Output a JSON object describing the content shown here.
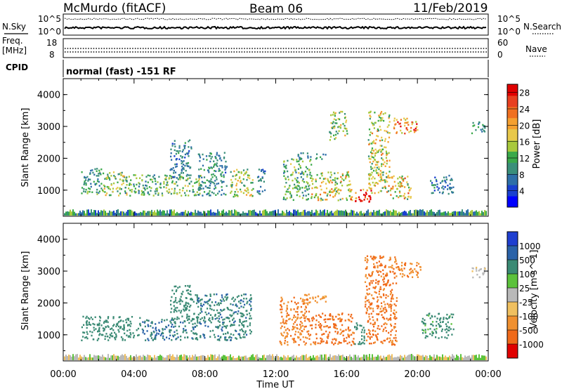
{
  "header": {
    "station": "McMurdo (fitACF)",
    "beam": "Beam 06",
    "date": "11/Feb/2019"
  },
  "summary_panels": {
    "nsky_label": "N.Sky",
    "nsearch_label": "N.Search",
    "freq_label_top": "Freq.",
    "freq_label_unit": "[MHz]",
    "nave_label": "Nave",
    "cpid_label": "CPID",
    "cpid_text": "normal (fast) -151 RF",
    "noise_left_ticks": [
      "10^5",
      "10^0"
    ],
    "noise_right_ticks": [
      "10^5",
      "10^0"
    ],
    "freq_left_ticks": [
      "18",
      "8"
    ],
    "nave_right_ticks": [
      "60",
      "0"
    ]
  },
  "chart_data": [
    {
      "type": "heatmap",
      "name": "power",
      "xlabel": "Time UT",
      "ylabel": "Slant Range [km]",
      "x_ticks": [
        "00:00",
        "04:00",
        "08:00",
        "12:00",
        "16:00",
        "20:00",
        "00:00"
      ],
      "x_range_hours": [
        0,
        24
      ],
      "ylim": [
        180,
        4500
      ],
      "y_ticks": [
        1000,
        2000,
        3000,
        4000
      ],
      "colorbar": {
        "label": "Power [dB]",
        "ticks": [
          4,
          8,
          12,
          16,
          20,
          24,
          28
        ],
        "range": [
          0,
          30
        ],
        "colors": [
          "#0000ff",
          "#1a40d0",
          "#2e6fa8",
          "#3a8f7a",
          "#3aa94a",
          "#a8c93c",
          "#e8c84a",
          "#f5a030",
          "#f07020",
          "#e84020",
          "#e00000"
        ]
      },
      "echo_regions": [
        {
          "t": [
            1.0,
            2.2
          ],
          "r": [
            900,
            1700
          ],
          "p": 10
        },
        {
          "t": [
            2.2,
            3.6
          ],
          "r": [
            850,
            1600
          ],
          "p": 14
        },
        {
          "t": [
            3.4,
            5.6
          ],
          "r": [
            850,
            1500
          ],
          "p": 11
        },
        {
          "t": [
            5.6,
            7.8
          ],
          "r": [
            850,
            1500
          ],
          "p": 13
        },
        {
          "t": [
            6.0,
            7.2
          ],
          "r": [
            1400,
            2600
          ],
          "p": 8
        },
        {
          "t": [
            7.6,
            9.2
          ],
          "r": [
            850,
            2200
          ],
          "p": 9
        },
        {
          "t": [
            9.4,
            10.7
          ],
          "r": [
            800,
            1700
          ],
          "p": 15
        },
        {
          "t": [
            10.9,
            11.4
          ],
          "r": [
            900,
            1700
          ],
          "p": 8
        },
        {
          "t": [
            12.4,
            14.0
          ],
          "r": [
            700,
            2000
          ],
          "p": 12
        },
        {
          "t": [
            13.2,
            14.8
          ],
          "r": [
            2000,
            2200
          ],
          "p": 9
        },
        {
          "t": [
            14.0,
            16.2
          ],
          "r": [
            700,
            1600
          ],
          "p": 17
        },
        {
          "t": [
            15.0,
            16.0
          ],
          "r": [
            2600,
            3500
          ],
          "p": 14
        },
        {
          "t": [
            16.2,
            17.4
          ],
          "r": [
            650,
            1100
          ],
          "p": 28
        },
        {
          "t": [
            17.2,
            18.4
          ],
          "r": [
            900,
            3500
          ],
          "p": 16
        },
        {
          "t": [
            18.4,
            19.6
          ],
          "r": [
            700,
            1500
          ],
          "p": 18
        },
        {
          "t": [
            18.6,
            20.0
          ],
          "r": [
            2800,
            3300
          ],
          "p": 22
        },
        {
          "t": [
            20.6,
            22.0
          ],
          "r": [
            900,
            1500
          ],
          "p": 8
        },
        {
          "t": [
            23.0,
            23.8
          ],
          "r": [
            2800,
            3200
          ],
          "p": 9
        }
      ]
    },
    {
      "type": "heatmap",
      "name": "velocity",
      "xlabel": "Time UT",
      "ylabel": "Slant Range [km]",
      "x_ticks": [
        "00:00",
        "04:00",
        "08:00",
        "12:00",
        "16:00",
        "20:00",
        "00:00"
      ],
      "x_range_hours": [
        0,
        24
      ],
      "ylim": [
        180,
        4500
      ],
      "y_ticks": [
        1000,
        2000,
        3000,
        4000
      ],
      "colorbar": {
        "label": "Velocity [m s^-1]",
        "ticks": [
          "1000",
          "500",
          "100",
          "25",
          "-25",
          "-100",
          "-500",
          "-1000"
        ],
        "colors": [
          "#1f3fd0",
          "#2a62a8",
          "#3a8a74",
          "#5cc23c",
          "#b9b9b9",
          "#f0c060",
          "#f09030",
          "#f06a1a",
          "#e00000"
        ]
      },
      "echo_regions": [
        {
          "t": [
            1.0,
            4.4
          ],
          "r": [
            850,
            1600
          ],
          "v": 200
        },
        {
          "t": [
            4.4,
            7.0
          ],
          "r": [
            850,
            1500
          ],
          "v": 300
        },
        {
          "t": [
            6.0,
            7.2
          ],
          "r": [
            1400,
            2600
          ],
          "v": 200
        },
        {
          "t": [
            7.2,
            10.6
          ],
          "r": [
            850,
            2300
          ],
          "v": 250
        },
        {
          "t": [
            12.2,
            14.0
          ],
          "r": [
            700,
            2200
          ],
          "v": -300
        },
        {
          "t": [
            13.4,
            14.8
          ],
          "r": [
            2000,
            2300
          ],
          "v": -150
        },
        {
          "t": [
            14.0,
            16.4
          ],
          "r": [
            700,
            1700
          ],
          "v": -400
        },
        {
          "t": [
            16.4,
            17.0
          ],
          "r": [
            700,
            1400
          ],
          "v": 150
        },
        {
          "t": [
            17.0,
            18.8
          ],
          "r": [
            700,
            3500
          ],
          "v": -350
        },
        {
          "t": [
            18.8,
            20.2
          ],
          "r": [
            2800,
            3300
          ],
          "v": -250
        },
        {
          "t": [
            20.2,
            22.0
          ],
          "r": [
            900,
            1700
          ],
          "v": 80
        },
        {
          "t": [
            23.0,
            23.8
          ],
          "r": [
            2800,
            3200
          ],
          "v": -20
        }
      ]
    }
  ]
}
